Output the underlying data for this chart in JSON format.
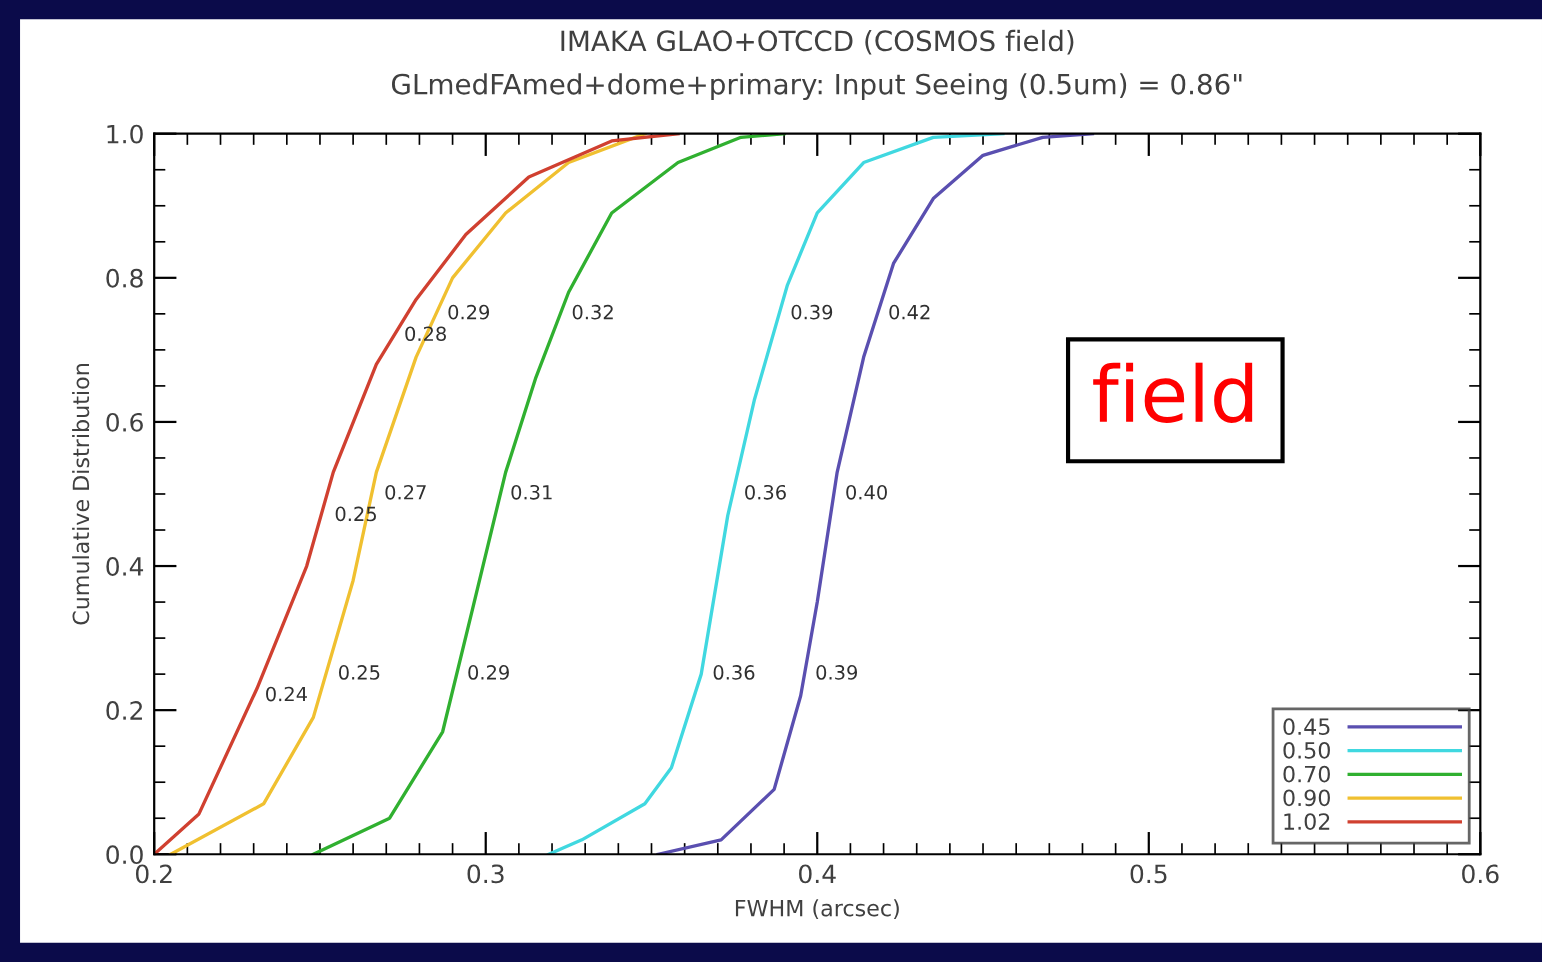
{
  "chart_data": {
    "type": "line",
    "title": "IMAKA GLAO+OTCCD (COSMOS field)",
    "subtitle": "GLmedFAmed+dome+primary: Input Seeing (0.5um) = 0.86\"",
    "xlabel": "FWHM (arcsec)",
    "ylabel": "Cumulative Distribution",
    "xlim": [
      0.2,
      0.6
    ],
    "ylim": [
      0.0,
      1.0
    ],
    "xticks": [
      0.2,
      0.3,
      0.4,
      0.5,
      0.6
    ],
    "yticks": [
      {
        "value": 0,
        "label": "0.0"
      },
      0.2,
      0.4,
      0.6,
      0.8,
      {
        "value": 1,
        "label": "1.0"
      }
    ],
    "grid": false,
    "legend": "bottom right",
    "marker": "none",
    "line_style": "solid",
    "series": [
      {
        "name": "0.45",
        "color": "#5a4fb0",
        "x": [
          0.352,
          0.371,
          0.387,
          0.395,
          0.4,
          0.406,
          0.414,
          0.423,
          0.435,
          0.45,
          0.468,
          0.483
        ],
        "values": [
          0.0,
          0.02,
          0.09,
          0.22,
          0.35,
          0.53,
          0.69,
          0.82,
          0.91,
          0.97,
          0.995,
          1.0
        ]
      },
      {
        "name": "0.50",
        "color": "#40d8e0",
        "x": [
          0.319,
          0.329,
          0.348,
          0.356,
          0.365,
          0.373,
          0.381,
          0.391,
          0.4,
          0.414,
          0.435,
          0.456
        ],
        "values": [
          0.0,
          0.02,
          0.07,
          0.12,
          0.25,
          0.47,
          0.63,
          0.79,
          0.89,
          0.96,
          0.995,
          1.0
        ]
      },
      {
        "name": "0.70",
        "color": "#30b030",
        "x": [
          0.248,
          0.271,
          0.287,
          0.296,
          0.306,
          0.315,
          0.325,
          0.338,
          0.358,
          0.377,
          0.39
        ],
        "values": [
          0.0,
          0.05,
          0.17,
          0.34,
          0.53,
          0.66,
          0.78,
          0.89,
          0.96,
          0.995,
          1.0
        ]
      },
      {
        "name": "0.90",
        "color": "#f0c030",
        "x": [
          0.205,
          0.233,
          0.248,
          0.26,
          0.267,
          0.279,
          0.29,
          0.306,
          0.325,
          0.348
        ],
        "values": [
          0.0,
          0.07,
          0.19,
          0.38,
          0.53,
          0.69,
          0.8,
          0.89,
          0.96,
          1.0
        ]
      },
      {
        "name": "1.02",
        "color": "#d04030",
        "x": [
          0.2,
          0.2135,
          0.231,
          0.246,
          0.254,
          0.267,
          0.279,
          0.294,
          0.313,
          0.338,
          0.358
        ],
        "values": [
          0.0,
          0.056,
          0.23,
          0.4,
          0.53,
          0.68,
          0.77,
          0.86,
          0.94,
          0.99,
          1.0
        ]
      }
    ],
    "annotations": [
      {
        "text": "0.24",
        "x": 0.23,
        "y": 0.22
      },
      {
        "text": "0.25",
        "x": 0.252,
        "y": 0.25
      },
      {
        "text": "0.25",
        "x": 0.251,
        "y": 0.47
      },
      {
        "text": "0.27",
        "x": 0.266,
        "y": 0.5
      },
      {
        "text": "0.28",
        "x": 0.272,
        "y": 0.72
      },
      {
        "text": "0.29",
        "x": 0.285,
        "y": 0.75
      },
      {
        "text": "0.32",
        "x": 0.3225,
        "y": 0.75
      },
      {
        "text": "0.31",
        "x": 0.304,
        "y": 0.5
      },
      {
        "text": "0.29",
        "x": 0.291,
        "y": 0.25
      },
      {
        "text": "0.36",
        "x": 0.365,
        "y": 0.25
      },
      {
        "text": "0.36",
        "x": 0.3745,
        "y": 0.5
      },
      {
        "text": "0.39",
        "x": 0.3885,
        "y": 0.75
      },
      {
        "text": "0.42",
        "x": 0.418,
        "y": 0.75
      },
      {
        "text": "0.40",
        "x": 0.405,
        "y": 0.5
      },
      {
        "text": "0.39",
        "x": 0.396,
        "y": 0.25
      },
      "field"
    ]
  }
}
